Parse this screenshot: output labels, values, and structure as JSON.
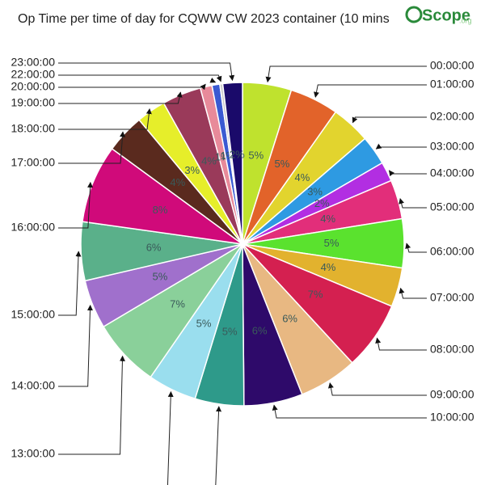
{
  "chart_data": {
    "type": "pie",
    "title": "Op Time per time of day for CQWW CW 2023 container (10 mins",
    "logo": "Scope",
    "logo_sub": ".org",
    "categories": [
      "00:00:00",
      "01:00:00",
      "02:00:00",
      "03:00:00",
      "04:00:00",
      "05:00:00",
      "06:00:00",
      "07:00:00",
      "08:00:00",
      "09:00:00",
      "10:00:00",
      null,
      null,
      "13:00:00",
      "14:00:00",
      "15:00:00",
      "16:00:00",
      "17:00:00",
      "18:00:00",
      "19:00:00",
      "20:00:00",
      null,
      "22:00:00",
      "23:00:00"
    ],
    "values": [
      5,
      5,
      4,
      3,
      2,
      4,
      5,
      4,
      7,
      6,
      6,
      5,
      5,
      7,
      5,
      6,
      8,
      4,
      3,
      4,
      1.2,
      0.8,
      0.3,
      2
    ],
    "value_labels": [
      "5%",
      "5%",
      "4%",
      "3%",
      "2%",
      "4%",
      "5%",
      "4%",
      "7%",
      "6%",
      "6%",
      "5%",
      "5%",
      "7%",
      "5%",
      "6%",
      "8%",
      "4%",
      "3%",
      "4%",
      "1%",
      "1%",
      null,
      "2%"
    ],
    "colors": [
      "#bfe22e",
      "#e2632a",
      "#e2d42e",
      "#2e9ae2",
      "#b22ee2",
      "#e22e7a",
      "#5ae22e",
      "#e2b22e",
      "#d42050",
      "#e8b882",
      "#2e0a6a",
      "#2e9a8a",
      "#9adeee",
      "#8ad09a",
      "#a070cc",
      "#5ab08a",
      "#d00a7a",
      "#5a2a1e",
      "#e6ee2a",
      "#9a3a5a",
      "#e88a9a",
      "#3a5ad2",
      "#cccccc",
      "#1a0a6a"
    ]
  }
}
